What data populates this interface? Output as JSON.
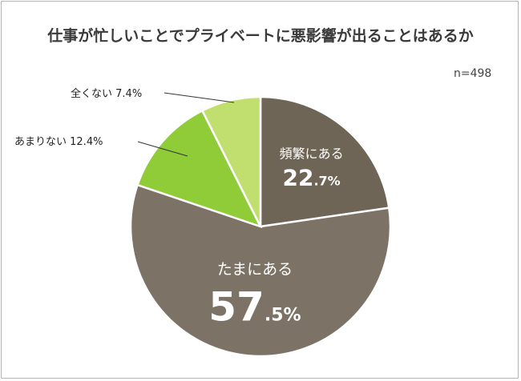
{
  "title": "仕事が忙しいことでプライベートに悪影響が出ることはあるか",
  "sample_size": "n=498",
  "chart_data": {
    "type": "pie",
    "title": "仕事が忙しいことでプライベートに悪影響が出ることはあるか",
    "slices": [
      {
        "label": "頻繁にある",
        "value": 22.7,
        "int_text": "22",
        "dec_text": ".7%",
        "color": "#6e6556",
        "label_style": "inside"
      },
      {
        "label": "たまにある",
        "value": 57.5,
        "int_text": "57",
        "dec_text": ".5%",
        "color": "#7c7366",
        "label_style": "inside"
      },
      {
        "label": "あまりない",
        "value": 12.4,
        "text": "12.4%",
        "color": "#8fcc38",
        "label_style": "outside"
      },
      {
        "label": "全くない",
        "value": 7.4,
        "text": "7.4%",
        "color": "#c1df6e",
        "label_style": "outside"
      }
    ],
    "start_angle_deg": 0,
    "direction": "clockwise"
  }
}
